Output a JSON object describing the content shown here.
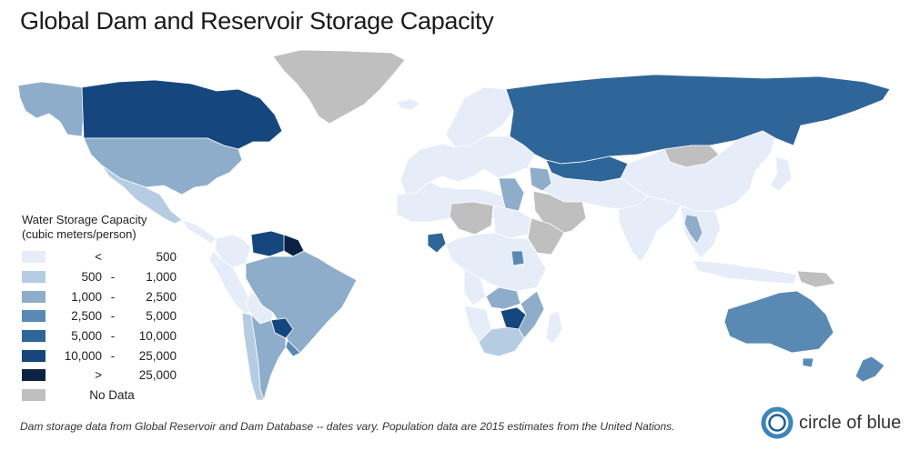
{
  "title": "Global Dam and Reservoir Storage Capacity",
  "legend": {
    "title_line1": "Water Storage Capacity",
    "title_line2": "(cubic meters/person)",
    "items": [
      {
        "lo": "<",
        "dash": "",
        "hi": "500",
        "color": "#e6edf8"
      },
      {
        "lo": "500",
        "dash": "-",
        "hi": "1,000",
        "color": "#b6cce3"
      },
      {
        "lo": "1,000",
        "dash": "-",
        "hi": "2,500",
        "color": "#8eadca"
      },
      {
        "lo": "2,500",
        "dash": "-",
        "hi": "5,000",
        "color": "#5a8ab4"
      },
      {
        "lo": "5,000",
        "dash": "-",
        "hi": "10,000",
        "color": "#2f6699"
      },
      {
        "lo": "10,000",
        "dash": "-",
        "hi": "25,000",
        "color": "#15477e"
      },
      {
        "lo": ">",
        "dash": "",
        "hi": "25,000",
        "color": "#0a2345"
      },
      {
        "label": "No Data",
        "color": "#bfbfbf"
      }
    ]
  },
  "map_colors": {
    "ocean": "#ffffff",
    "border": "#ffffff"
  },
  "regions": {
    "canada": "#15477e",
    "alaska": "#8eadca",
    "usa": "#8eadca",
    "mexico": "#b6cce3",
    "central_america": "#e6edf8",
    "greenland": "#bfbfbf",
    "venezuela": "#15477e",
    "guyana_suriname": "#0a2345",
    "colombia": "#e6edf8",
    "peru_ecuador": "#e6edf8",
    "brazil": "#8eadca",
    "bolivia": "#e6edf8",
    "paraguay": "#15477e",
    "argentina": "#8eadca",
    "chile": "#b6cce3",
    "uruguay": "#5a8ab4",
    "russia": "#2f6699",
    "kazakhstan": "#2f6699",
    "mongolia": "#bfbfbf",
    "china": "#e6edf8",
    "india": "#e6edf8",
    "middle_east": "#e6edf8",
    "saudi": "#bfbfbf",
    "iraq_syria": "#8eadca",
    "europe": "#e6edf8",
    "scandinavia": "#e6edf8",
    "iceland": "#e6edf8",
    "n_africa": "#e6edf8",
    "egypt": "#8eadca",
    "west_africa_nodata": "#bfbfbf",
    "ghana": "#2f6699",
    "sudan": "#e6edf8",
    "horn_africa": "#bfbfbf",
    "central_africa": "#e6edf8",
    "uganda": "#5a8ab4",
    "angola": "#e6edf8",
    "zambia": "#8eadca",
    "zimbabwe": "#15477e",
    "mozambique": "#8eadca",
    "south_africa": "#b6cce3",
    "namibia": "#e6edf8",
    "madagascar": "#e6edf8",
    "se_asia": "#e6edf8",
    "thailand": "#8eadca",
    "indonesia": "#e6edf8",
    "japan": "#e6edf8",
    "australia": "#5a8ab4",
    "new_zealand": "#5a8ab4",
    "tasmania": "#5a8ab4",
    "png": "#bfbfbf"
  },
  "source": "Dam storage data from Global Reservoir and Dam Database -- dates vary. Population data are 2015 estimates from the United Nations.",
  "brand": {
    "name": "circle of blue",
    "ring_color": "#3b86b8",
    "inner_color": "#1e5f8e"
  }
}
